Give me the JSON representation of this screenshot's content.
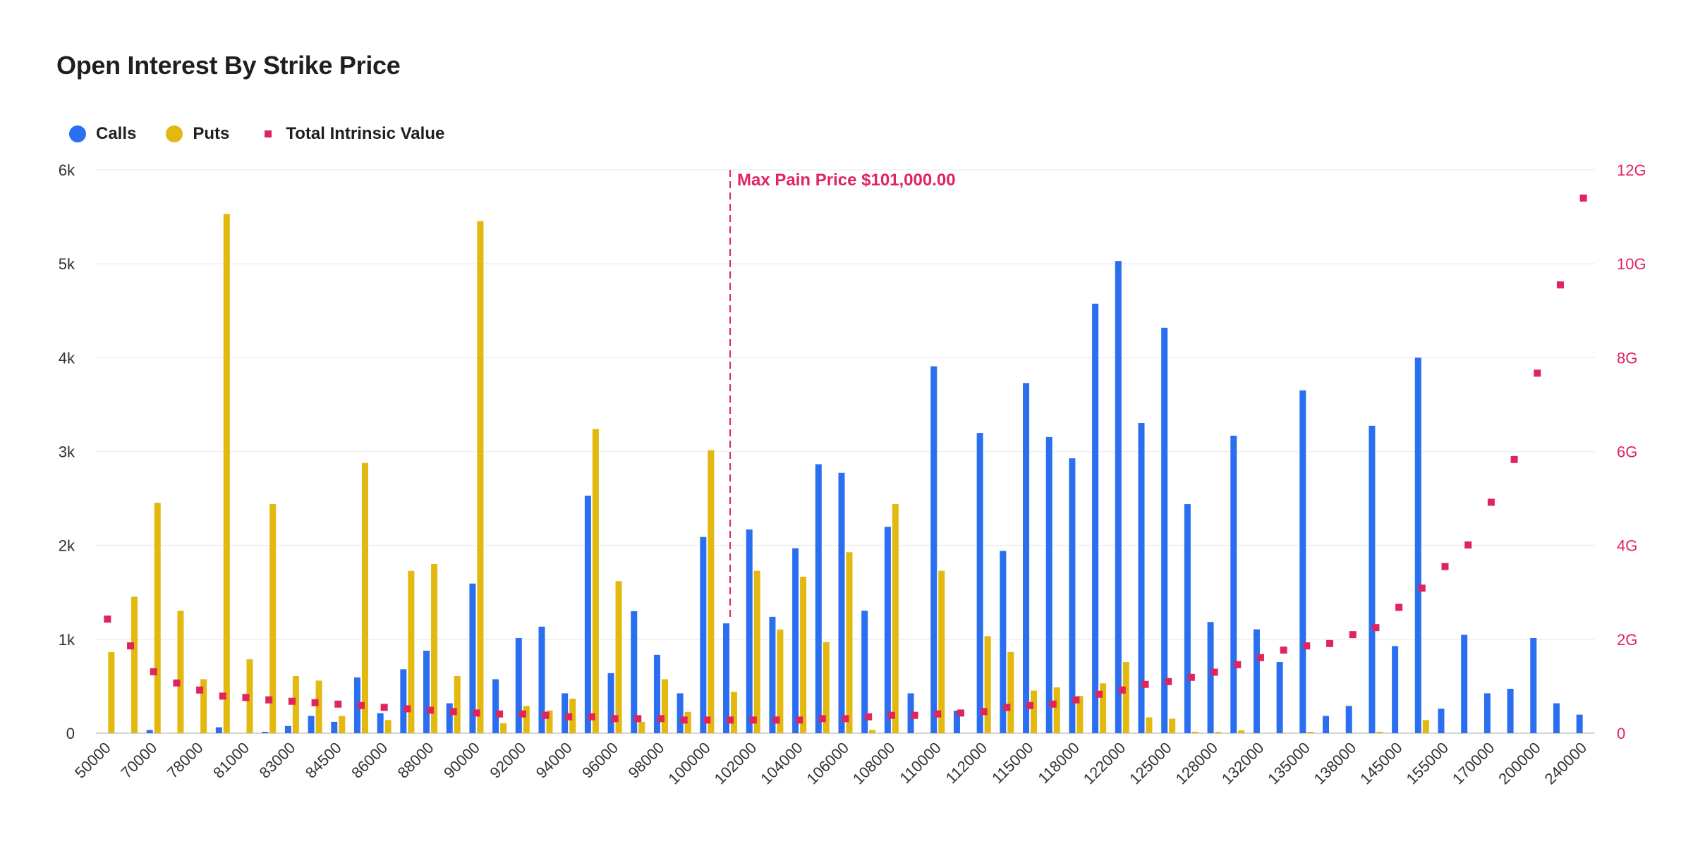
{
  "chart_data": {
    "type": "bar",
    "title": "Open Interest By Strike Price",
    "categories": [
      "50000",
      "",
      "70000",
      "",
      "78000",
      "",
      "81000",
      "",
      "83000",
      "",
      "84500",
      "",
      "86000",
      "",
      "88000",
      "",
      "90000",
      "",
      "92000",
      "",
      "94000",
      "",
      "96000",
      "",
      "98000",
      "",
      "100000",
      "",
      "102000",
      "",
      "104000",
      "",
      "106000",
      "",
      "108000",
      "",
      "110000",
      "",
      "112000",
      "",
      "115000",
      "",
      "118000",
      "",
      "122000",
      "",
      "125000",
      "",
      "128000",
      "",
      "132000",
      "",
      "135000",
      "",
      "138000",
      "",
      "145000",
      "",
      "155000",
      "",
      "170000",
      "",
      "200000",
      "",
      "240000"
    ],
    "series": [
      {
        "name": "Calls",
        "type": "bar",
        "axis": "left",
        "color": "#2a6ff0",
        "values": [
          0,
          0,
          34,
          0,
          0,
          63,
          0,
          15,
          77,
          184,
          121,
          594,
          213,
          681,
          879,
          319,
          1594,
          575,
          1014,
          1135,
          425,
          2530,
          640,
          1300,
          835,
          425,
          2090,
          1170,
          2170,
          1240,
          1970,
          2865,
          2773,
          1304,
          2198,
          425,
          3908,
          240,
          3198,
          1942,
          3730,
          3155,
          2928,
          4575,
          5030,
          3304,
          4319,
          2440,
          1184,
          3169,
          1106,
          758,
          3652,
          184,
          290,
          3275,
          928,
          4000,
          261,
          1048,
          425,
          473,
          1014,
          319,
          198
        ]
      },
      {
        "name": "Puts",
        "type": "bar",
        "axis": "left",
        "color": "#e3b80f",
        "values": [
          865,
          1454,
          2454,
          1304,
          575,
          5531,
          787,
          2440,
          609,
          560,
          184,
          2879,
          140,
          1729,
          1802,
          609,
          5454,
          106,
          290,
          242,
          367,
          3240,
          1620,
          120,
          575,
          227,
          3015,
          440,
          1730,
          1105,
          1667,
          970,
          1928,
          34,
          2440,
          0,
          1730,
          0,
          1034,
          865,
          454,
          488,
          396,
          531,
          758,
          169,
          155,
          15,
          15,
          30,
          0,
          0,
          15,
          0,
          0,
          15,
          0,
          140,
          0,
          0,
          0,
          0,
          0,
          0,
          0
        ]
      },
      {
        "name": "Total Intrinsic Value",
        "type": "scatter",
        "axis": "right",
        "color": "#e0245e",
        "values": [
          2.43,
          1.86,
          1.31,
          1.07,
          0.92,
          0.79,
          0.76,
          0.71,
          0.68,
          0.65,
          0.62,
          0.59,
          0.55,
          0.52,
          0.49,
          0.46,
          0.43,
          0.41,
          0.41,
          0.38,
          0.35,
          0.35,
          0.31,
          0.31,
          0.31,
          0.28,
          0.28,
          0.28,
          0.28,
          0.28,
          0.28,
          0.31,
          0.31,
          0.35,
          0.38,
          0.38,
          0.41,
          0.43,
          0.46,
          0.55,
          0.59,
          0.62,
          0.71,
          0.83,
          0.92,
          1.04,
          1.1,
          1.19,
          1.3,
          1.46,
          1.61,
          1.77,
          1.86,
          1.91,
          2.1,
          2.25,
          2.68,
          3.09,
          3.55,
          4.01,
          4.92,
          5.83,
          7.67,
          9.55,
          11.4
        ]
      }
    ],
    "y_left": {
      "ylim": [
        0,
        6000
      ],
      "ticks": [
        0,
        1000,
        2000,
        3000,
        4000,
        5000,
        6000
      ],
      "tick_labels": [
        "0",
        "1k",
        "2k",
        "3k",
        "4k",
        "5k",
        "6k"
      ]
    },
    "y_right": {
      "ylim": [
        0,
        12
      ],
      "ticks": [
        0,
        2,
        4,
        6,
        8,
        10,
        12
      ],
      "tick_labels": [
        "0",
        "2G",
        "4G",
        "6G",
        "8G",
        "10G",
        "12G"
      ],
      "color": "#e0245e"
    },
    "grid": true,
    "legend_placement": "top-left",
    "annotation": {
      "label": "Max Pain Price $101,000.00",
      "category_index": 27,
      "color": "#e0245e",
      "style": "dashed"
    }
  }
}
